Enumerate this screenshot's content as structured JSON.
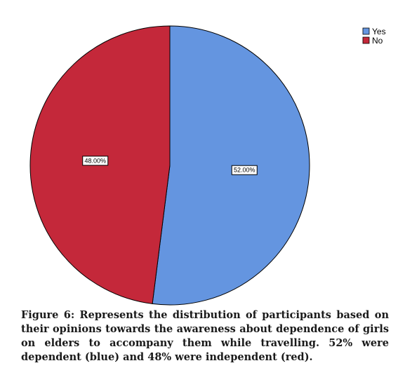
{
  "chart_data": {
    "type": "pie",
    "categories": [
      "Yes",
      "No"
    ],
    "values": [
      52.0,
      48.0
    ],
    "data_labels": [
      "52.00%",
      "48.00%"
    ],
    "colors": [
      "#6495e0",
      "#c4283a"
    ],
    "legend": {
      "placement": "top-right",
      "entries": [
        "Yes",
        "No"
      ]
    }
  },
  "caption": "Figure 6: Represents the distribution of participants based on their opinions towards the awareness about dependence of girls on elders to accompany them while travelling. 52% were dependent (blue) and 48% were independent (red)."
}
